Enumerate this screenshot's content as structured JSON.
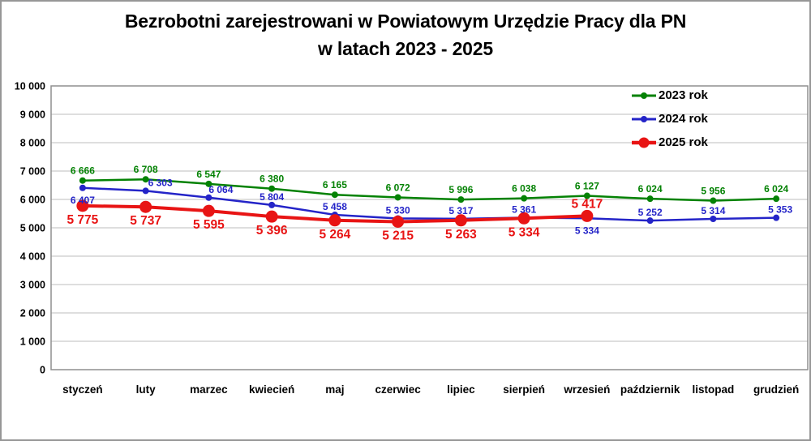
{
  "chart_data": {
    "type": "line",
    "title": "Bezrobotni zarejestrowani w Powiatowym Urzędzie Pracy dla PN w latach 2023 - 2025",
    "title_lines": [
      "Bezrobotni zarejestrowani w Powiatowym Urzędzie Pracy dla PN",
      "w latach 2023 - 2025"
    ],
    "categories": [
      "styczeń",
      "luty",
      "marzec",
      "kwiecień",
      "maj",
      "czerwiec",
      "lipiec",
      "sierpień",
      "wrzesień",
      "październik",
      "listopad",
      "grudzień"
    ],
    "ylim": [
      0,
      10000
    ],
    "y_tick_step": 1000,
    "y_tick_labels": [
      "0",
      "1 000",
      "2 000",
      "3 000",
      "4 000",
      "5 000",
      "6 000",
      "7 000",
      "8 000",
      "9 000",
      "10 000"
    ],
    "grid": "horizontal",
    "legend_position": "top-right-inside",
    "colors": {
      "axis_border": "#8f8f8f",
      "gridline": "#c9c9c9",
      "text": "#000000"
    },
    "series": [
      {
        "name": "2023 rok",
        "color": "#048204",
        "line_width": 2.5,
        "marker_radius": 4,
        "values": [
          6666,
          6708,
          6547,
          6380,
          6165,
          6072,
          5996,
          6038,
          6127,
          6024,
          5956,
          6024
        ],
        "labels": {
          "font_size": 12,
          "default_pos": "above",
          "dy_above": -8,
          "dy_below": 18,
          "overrides": {}
        }
      },
      {
        "name": "2024 rok",
        "color": "#2424c8",
        "line_width": 2.5,
        "marker_radius": 4,
        "values": [
          6407,
          6303,
          6064,
          5804,
          5458,
          5330,
          5317,
          5361,
          5334,
          5252,
          5314,
          5353
        ],
        "labels": {
          "font_size": 12,
          "default_pos": "above",
          "dy_above": -6,
          "dy_below": 19,
          "overrides": {
            "0": {
              "pos": "below"
            },
            "1": {
              "dx": 18
            },
            "2": {
              "dx": 15
            },
            "8": {
              "pos": "below"
            },
            "11": {
              "dx": 5
            }
          }
        }
      },
      {
        "name": "2025 rok",
        "color": "#e81414",
        "line_width": 4,
        "marker_radius": 7.5,
        "values": [
          5775,
          5737,
          5595,
          5396,
          5264,
          5215,
          5263,
          5334,
          5417
        ],
        "labels": {
          "font_size": 15.5,
          "default_pos": "below",
          "dy_above": -10,
          "dy_below": 22,
          "overrides": {
            "8": {
              "pos": "above"
            }
          }
        }
      }
    ]
  }
}
